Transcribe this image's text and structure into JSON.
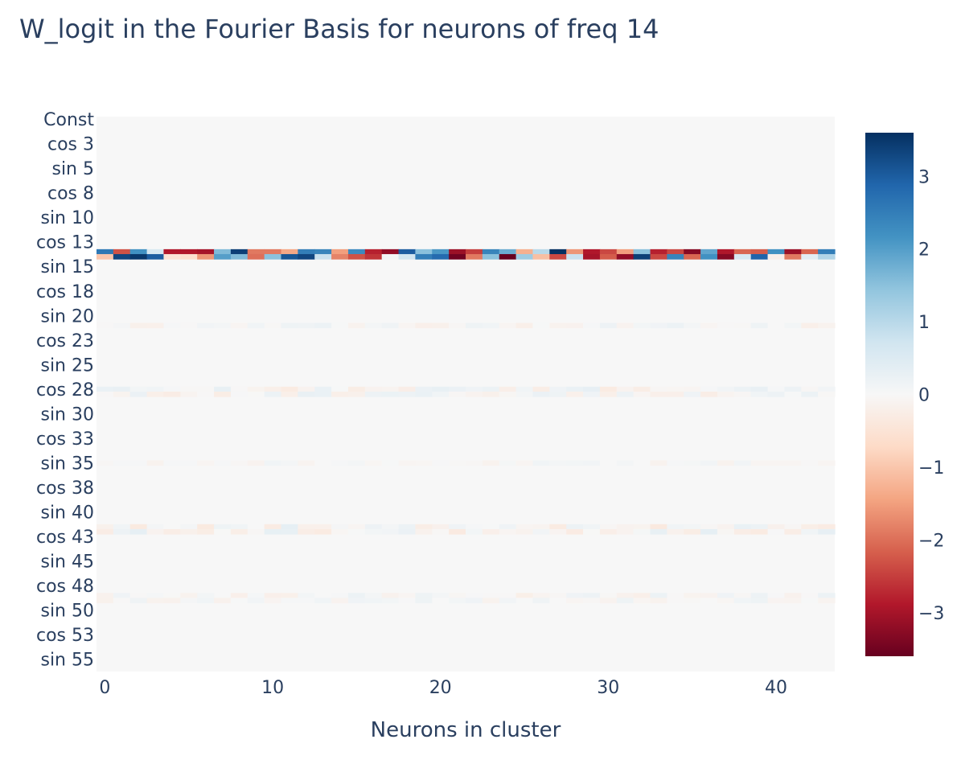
{
  "chart_data": {
    "type": "heatmap",
    "title": "W_logit in the Fourier Basis for neurons of freq 14",
    "xlabel": "Neurons in cluster",
    "ylabel": "",
    "x_range": [
      0,
      43
    ],
    "x_ticks": [
      0,
      10,
      20,
      30,
      40
    ],
    "x_tick_labels": [
      "0",
      "10",
      "20",
      "30",
      "40"
    ],
    "y_rows_shown": 113,
    "y_tick_labels": [
      "Const",
      "cos 3",
      "sin 5",
      "cos 8",
      "sin 10",
      "cos 13",
      "sin 15",
      "cos 18",
      "sin 20",
      "cos 23",
      "sin 25",
      "cos 28",
      "sin 30",
      "cos 33",
      "sin 35",
      "cos 38",
      "sin 40",
      "cos 43",
      "sin 45",
      "cos 48",
      "sin 50",
      "cos 53",
      "sin 55"
    ],
    "y_tick_rows": [
      0,
      5,
      10,
      15,
      20,
      25,
      30,
      35,
      40,
      45,
      50,
      55,
      60,
      65,
      70,
      75,
      80,
      85,
      90,
      95,
      100,
      105,
      110
    ],
    "colorscale": "RdBu",
    "colorbar": {
      "min": -3.6,
      "max": 3.6,
      "ticks": [
        3,
        2,
        1,
        0,
        -1,
        -2,
        -3
      ],
      "tick_labels": [
        "3",
        "2",
        "1",
        "0",
        "−1",
        "−2",
        "−3"
      ],
      "stops": [
        "#67001f",
        "#b2182b",
        "#d6604d",
        "#f4a582",
        "#fddbc7",
        "#f7f7f7",
        "#d1e5f0",
        "#92c5de",
        "#4393c3",
        "#2166ac",
        "#053061"
      ]
    },
    "strong_rows": [
      {
        "label": "cos 14",
        "row": 27,
        "values": [
          2.6,
          -2.3,
          2.2,
          0.6,
          -2.9,
          -2.9,
          -3.0,
          1.6,
          3.4,
          -1.9,
          -1.9,
          -1.4,
          2.5,
          2.4,
          -1.5,
          2.3,
          -2.8,
          -3.2,
          3.0,
          1.5,
          2.1,
          -3.1,
          -2.5,
          2.4,
          1.8,
          -1.3,
          1.0,
          3.6,
          -1.6,
          -2.9,
          -2.4,
          -1.5,
          1.5,
          -2.8,
          -2.4,
          -3.3,
          1.9,
          -2.9,
          -2.1,
          -2.2,
          2.2,
          -3.1,
          -2.1,
          2.5
        ]
      },
      {
        "label": "sin 14",
        "row": 28,
        "values": [
          -1.0,
          3.3,
          3.5,
          3.0,
          -0.5,
          -0.6,
          -1.6,
          2.0,
          1.6,
          -2.0,
          1.5,
          3.1,
          3.3,
          0.8,
          -1.8,
          -2.3,
          -2.6,
          0.1,
          0.7,
          2.5,
          2.8,
          -3.5,
          -1.9,
          1.5,
          -3.6,
          1.3,
          -1.1,
          -2.4,
          0.8,
          -3.0,
          -2.2,
          -3.2,
          3.4,
          -2.4,
          2.4,
          -2.1,
          2.2,
          -3.3,
          0.6,
          2.9,
          -0.2,
          -1.9,
          0.4,
          1.1
        ]
      }
    ],
    "weak_rows": [
      {
        "label": "sin 21",
        "row": 42,
        "amplitude": 0.22
      },
      {
        "label": "cos 28",
        "row": 55,
        "amplitude": 0.32
      },
      {
        "label": "sin 28",
        "row": 56,
        "amplitude": 0.28
      },
      {
        "label": "sin 35",
        "row": 70,
        "amplitude": 0.15
      },
      {
        "label": "cos 42",
        "row": 83,
        "amplitude": 0.36
      },
      {
        "label": "sin 42",
        "row": 84,
        "amplitude": 0.34
      },
      {
        "label": "cos 49",
        "row": 97,
        "amplitude": 0.22
      },
      {
        "label": "sin 49",
        "row": 98,
        "amplitude": 0.18
      }
    ]
  }
}
